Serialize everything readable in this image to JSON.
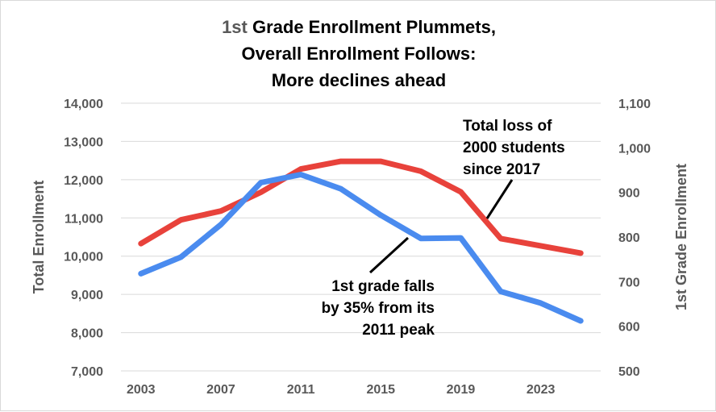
{
  "chart_data": {
    "type": "line",
    "title": {
      "line1_accent": "1st",
      "line1_rest": " Grade Enrollment Plummets,",
      "line2": "Overall Enrollment Follows:",
      "line3": "More declines ahead"
    },
    "x": [
      2003,
      2005,
      2007,
      2009,
      2011,
      2013,
      2015,
      2017,
      2019,
      2021,
      2023,
      2025
    ],
    "x_ticks": [
      "2003",
      "2007",
      "2011",
      "2015",
      "2019",
      "2023"
    ],
    "y_left": {
      "label": "Total Enrollment",
      "range": [
        7000,
        14000
      ],
      "ticks": [
        "7,000",
        "8,000",
        "9,000",
        "10,000",
        "11,000",
        "12,000",
        "13,000",
        "14,000"
      ]
    },
    "y_right": {
      "label": "1st Grade Enrollment",
      "range": [
        500,
        1100
      ],
      "ticks": [
        "500",
        "600",
        "700",
        "800",
        "900",
        "1,000",
        "1,100"
      ]
    },
    "series": [
      {
        "axis": "left",
        "color": "#e8423b",
        "values": [
          10330,
          10950,
          11180,
          11670,
          12280,
          12480,
          12480,
          12220,
          11680,
          10460,
          10270,
          10080
        ]
      },
      {
        "axis": "right",
        "color": "#4a8bef",
        "values": [
          718,
          755,
          828,
          922,
          940,
          908,
          849,
          797,
          798,
          678,
          652,
          612
        ]
      }
    ],
    "grid": true,
    "annotations": [
      {
        "lines": [
          "Total loss of",
          "2000 students",
          "since 2017"
        ]
      },
      {
        "lines": [
          "1st grade falls",
          "by 35% from its",
          "2011 peak"
        ]
      }
    ]
  }
}
